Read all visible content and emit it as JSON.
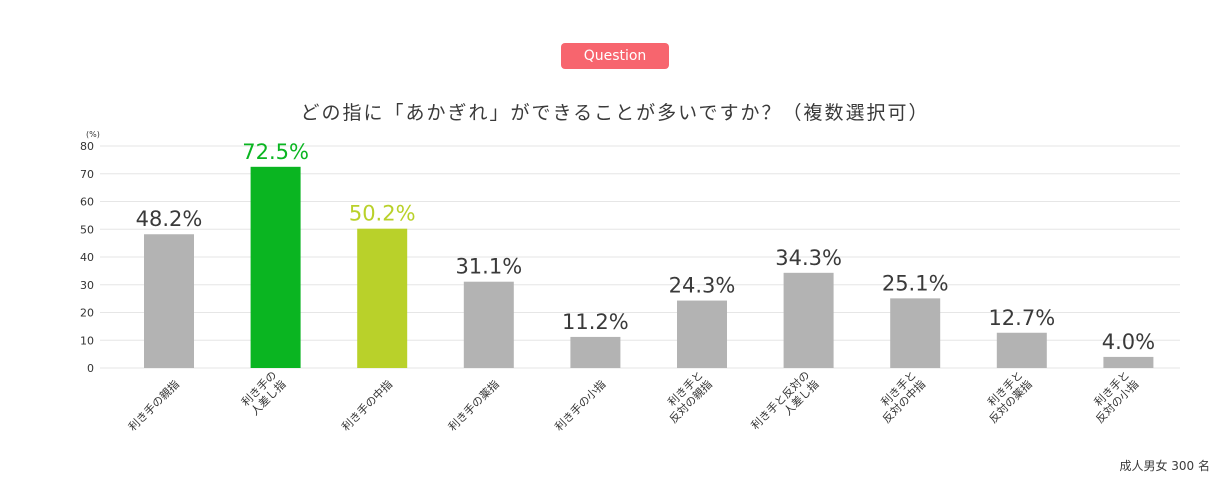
{
  "badge": "Question",
  "footnote": "成人男女 300 名",
  "colors": {
    "badge": "#f7656e",
    "bar_default": "#b3b3b3",
    "bar_first": "#0ab521",
    "bar_second": "#b9d12a",
    "label_default": "#3a3a3a",
    "grid": "#e6e6e6"
  },
  "chart_data": {
    "type": "bar",
    "title": "どの指に「あかぎれ」ができることが多いですか？（複数選択可）",
    "ylabel": "(%)",
    "ylim": [
      0,
      80
    ],
    "yticks": [
      0,
      10,
      20,
      30,
      40,
      50,
      60,
      70,
      80
    ],
    "grid": true,
    "categories": [
      [
        "利き手の親指"
      ],
      [
        "利き手の",
        "人差し指"
      ],
      [
        "利き手の中指"
      ],
      [
        "利き手の薬指"
      ],
      [
        "利き手の小指"
      ],
      [
        "利き手と",
        "反対の親指"
      ],
      [
        "利き手と反対の",
        "人差し指"
      ],
      [
        "利き手と",
        "反対の中指"
      ],
      [
        "利き手と",
        "反対の薬指"
      ],
      [
        "利き手と",
        "反対の小指"
      ]
    ],
    "values": [
      48.2,
      72.5,
      50.2,
      31.1,
      11.2,
      24.3,
      34.3,
      25.1,
      12.7,
      4.0
    ],
    "value_labels": [
      "48.2%",
      "72.5%",
      "50.2%",
      "31.1%",
      "11.2%",
      "24.3%",
      "34.3%",
      "25.1%",
      "12.7%",
      "4.0%"
    ],
    "highlight": {
      "1": "first",
      "2": "second"
    }
  }
}
